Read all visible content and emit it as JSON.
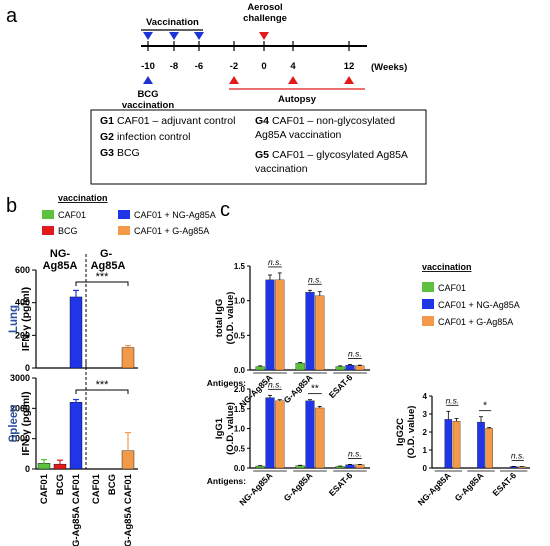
{
  "colors": {
    "caf01": "#5cc13e",
    "bcg": "#e11b1b",
    "ng": "#1f35e6",
    "g": "#f29a4a",
    "arrow_blue": "#1c33d6",
    "arrow_red": "#e11b1b",
    "lung_label": "#2a4fa0",
    "spleen_label": "#2a4fa0"
  },
  "panel_a": {
    "label": "a",
    "vaccination": "Vaccination",
    "aerosol": "Aerosol\nchallenge",
    "bcg_vaccination": "BCG\nvaccination",
    "autopsy": "Autopsy",
    "weeks": "(Weeks)",
    "ticks": [
      "-10",
      "-8",
      "-6",
      "-2",
      "0",
      "4",
      "12"
    ],
    "groups": [
      {
        "id": "G1",
        "text": "CAF01 – adjuvant control"
      },
      {
        "id": "G2",
        "text": "infection control"
      },
      {
        "id": "G3",
        "text": "BCG"
      },
      {
        "id": "G4",
        "text": "CAF01 – non-glycosylated Ag85A vaccination"
      },
      {
        "id": "G5",
        "text": "CAF01 – glycosylated Ag85A vaccination"
      }
    ]
  },
  "panel_b": {
    "label": "b",
    "legend_title": "vaccination",
    "legend": [
      "CAF01",
      "BCG",
      "CAF01 + NG-Ag85A",
      "CAF01 + G-Ag85A"
    ],
    "group_labels": [
      "NG-\nAg85A",
      "G-\nAg85A"
    ],
    "organ_lung": "Lung",
    "organ_spleen": "Spleen",
    "ylabel": "IFN-γ (pg/ml)",
    "significance": "***",
    "x_categories": [
      "CAF01",
      "BCG",
      "NG-Ag85A CAF01",
      "CAF01",
      "BCG",
      "G-Ag85A CAF01"
    ]
  },
  "panel_c": {
    "label": "c",
    "legend_title": "vaccination",
    "legend": [
      "CAF01",
      "CAF01 + NG-Ag85A",
      "CAF01 + G-Ag85A"
    ],
    "antigens_label": "Antigens:",
    "x_categories": [
      "NG-Ag85A",
      "G-Ag85A",
      "ESAT-6"
    ],
    "ylabel_total": "total IgG\n(O.D. value)",
    "ylabel_igg1": "IgG1\n(O.D. value)",
    "ylabel_igg2c": "IgG2C\n(O.D. value)",
    "ns": "n.s.",
    "sig2": "**",
    "sig1": "*"
  },
  "chart_data": [
    {
      "type": "bar",
      "panel": "b-lung",
      "ylabel": "IFN-γ (pg/ml)",
      "ylim": [
        0,
        600
      ],
      "yticks": [
        0,
        200,
        400,
        600
      ],
      "categories": [
        "CAF01",
        "BCG",
        "NG-Ag85A CAF01",
        "CAF01",
        "BCG",
        "G-Ag85A CAF01"
      ],
      "values": [
        0,
        0,
        435,
        0,
        0,
        125
      ],
      "errors": [
        0,
        0,
        40,
        0,
        0,
        12
      ]
    },
    {
      "type": "bar",
      "panel": "b-spleen",
      "ylabel": "IFN-γ (pg/ml)",
      "ylim": [
        0,
        3000
      ],
      "yticks": [
        0,
        1000,
        2000,
        3000
      ],
      "categories": [
        "CAF01",
        "BCG",
        "NG-Ag85A CAF01",
        "CAF01",
        "BCG",
        "G-Ag85A CAF01"
      ],
      "values": [
        190,
        160,
        2200,
        0,
        0,
        600
      ],
      "errors": [
        120,
        130,
        90,
        0,
        0,
        600
      ]
    },
    {
      "type": "bar",
      "panel": "c-totalIgG",
      "ylabel": "total IgG (O.D. value)",
      "ylim": [
        0,
        1.5
      ],
      "yticks": [
        0.0,
        0.5,
        1.0,
        1.5
      ],
      "categories": [
        "NG-Ag85A",
        "G-Ag85A",
        "ESAT-6"
      ],
      "series": [
        {
          "name": "CAF01",
          "values": [
            0.05,
            0.1,
            0.05
          ],
          "errors": [
            0.01,
            0.01,
            0.01
          ]
        },
        {
          "name": "CAF01 + NG-Ag85A",
          "values": [
            1.3,
            1.12,
            0.07
          ],
          "errors": [
            0.07,
            0.03,
            0.01
          ]
        },
        {
          "name": "CAF01 + G-Ag85A",
          "values": [
            1.3,
            1.07,
            0.06
          ],
          "errors": [
            0.1,
            0.06,
            0.01
          ]
        }
      ],
      "annotations": [
        "n.s.",
        "n.s.",
        "n.s."
      ]
    },
    {
      "type": "bar",
      "panel": "c-IgG1",
      "ylabel": "IgG1 (O.D. value)",
      "ylim": [
        0,
        2.0
      ],
      "yticks": [
        0.0,
        0.5,
        1.0,
        1.5,
        2.0
      ],
      "categories": [
        "NG-Ag85A",
        "G-Ag85A",
        "ESAT-6"
      ],
      "series": [
        {
          "name": "CAF01",
          "values": [
            0.05,
            0.06,
            0.04
          ],
          "errors": [
            0.01,
            0.01,
            0.01
          ]
        },
        {
          "name": "CAF01 + NG-Ag85A",
          "values": [
            1.78,
            1.7,
            0.08
          ],
          "errors": [
            0.06,
            0.03,
            0.01
          ]
        },
        {
          "name": "CAF01 + G-Ag85A",
          "values": [
            1.7,
            1.52,
            0.08
          ],
          "errors": [
            0.03,
            0.04,
            0.01
          ]
        }
      ],
      "annotations": [
        "n.s.",
        "**",
        "n.s."
      ]
    },
    {
      "type": "bar",
      "panel": "c-IgG2C",
      "ylabel": "IgG2C (O.D. value)",
      "ylim": [
        0,
        4
      ],
      "yticks": [
        0,
        1,
        2,
        3,
        4
      ],
      "categories": [
        "NG-Ag85A",
        "G-Ag85A",
        "ESAT-6"
      ],
      "series": [
        {
          "name": "CAF01",
          "values": [
            0.0,
            0.0,
            0.0
          ],
          "errors": [
            0,
            0,
            0
          ]
        },
        {
          "name": "CAF01 + NG-Ag85A",
          "values": [
            2.7,
            2.55,
            0.08
          ],
          "errors": [
            0.45,
            0.3,
            0.01
          ]
        },
        {
          "name": "CAF01 + G-Ag85A",
          "values": [
            2.6,
            2.2,
            0.07
          ],
          "errors": [
            0.15,
            0.05,
            0.01
          ]
        }
      ],
      "annotations": [
        "n.s.",
        "*",
        "n.s."
      ]
    }
  ]
}
